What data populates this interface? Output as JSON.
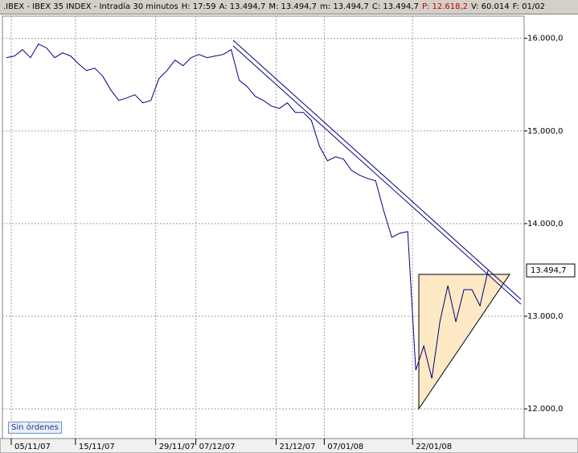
{
  "header": {
    "symbol": ".IBEX - IBEX 35 INDEX - Intradía 30 minutos",
    "fields": [
      "H: 17:59",
      "A: 13.494,7",
      "M: 13.494,7",
      "m: 13.494,7",
      "C: 13.494,7",
      "P: 12.618,2",
      "V: 60.014",
      "F: 01/02"
    ]
  },
  "button": "Sin órdenes",
  "chart_data": {
    "type": "line",
    "categories": [
      null,
      "05/11/07",
      null,
      null,
      null,
      null,
      null,
      null,
      null,
      "15/11/07",
      null,
      null,
      null,
      null,
      null,
      null,
      null,
      null,
      null,
      "29/11/07",
      null,
      null,
      null,
      null,
      "07/12/07",
      null,
      null,
      null,
      null,
      null,
      null,
      null,
      null,
      null,
      "21/12/07",
      null,
      null,
      null,
      null,
      null,
      "07/01/08",
      null,
      null,
      null,
      null,
      null,
      null,
      null,
      null,
      null,
      null,
      "22/01/08",
      null,
      null,
      null,
      null,
      null,
      null,
      null,
      null,
      null,
      null,
      null,
      null,
      null
    ],
    "series": [
      {
        "name": "IBEX 35",
        "color": "#000080",
        "values": [
          15791,
          15809,
          15878,
          15791,
          15939,
          15896,
          15791,
          15843,
          15809,
          15722,
          15652,
          15678,
          15591,
          15443,
          15330,
          15357,
          15391,
          15304,
          15330,
          15565,
          15652,
          15765,
          15704,
          15791,
          15826,
          15791,
          15809,
          15826,
          15878,
          15548,
          15478,
          15374,
          15330,
          15270,
          15243,
          15304,
          15200,
          15200,
          15113,
          14835,
          14678,
          14722,
          14696,
          14574,
          14522,
          14487,
          14461,
          14139,
          13852,
          13896,
          13913,
          12417,
          12678,
          12330,
          12939,
          13330,
          12939,
          13287,
          13287,
          13113,
          13494.7,
          null,
          null,
          null,
          null
        ]
      }
    ],
    "last_price_label": "13.494,7",
    "ylim": [
      11680,
      16240
    ],
    "yticks": [
      {
        "value": 12000,
        "label": "12.000,0"
      },
      {
        "value": 13000,
        "label": "13.000,0"
      },
      {
        "value": 14000,
        "label": "14.000,0"
      },
      {
        "value": 15000,
        "label": "15.000,0"
      },
      {
        "value": 16000,
        "label": "16.000,0"
      }
    ],
    "grid": true
  }
}
